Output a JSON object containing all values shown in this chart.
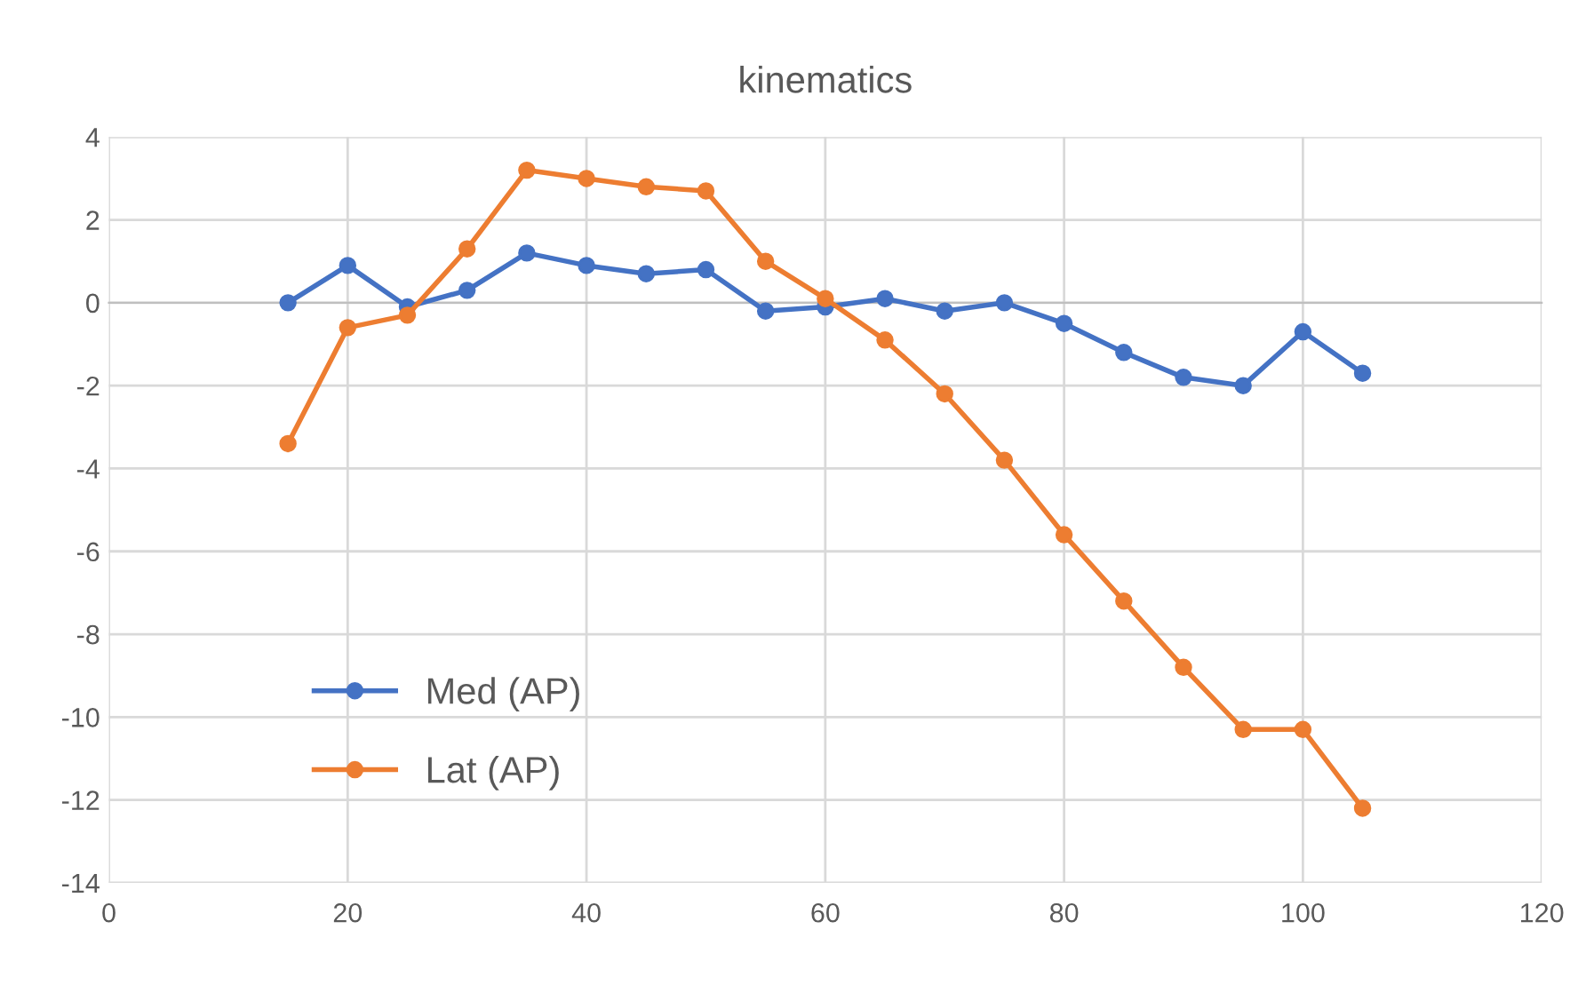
{
  "chart_data": {
    "type": "line",
    "title": "kinematics",
    "x": [
      15,
      20,
      25,
      30,
      35,
      40,
      45,
      50,
      55,
      60,
      65,
      70,
      75,
      80,
      85,
      90,
      95,
      100,
      105
    ],
    "series": [
      {
        "name": "Med (AP)",
        "color": "#4472c4",
        "values": [
          0,
          0.9,
          -0.1,
          0.3,
          1.2,
          0.9,
          0.7,
          0.8,
          -0.2,
          -0.1,
          0.1,
          -0.2,
          0,
          -0.5,
          -1.2,
          -1.8,
          -2.0,
          -0.7,
          -1.7
        ]
      },
      {
        "name": "Lat (AP)",
        "color": "#ed7d31",
        "values": [
          -3.4,
          -0.6,
          -0.3,
          1.3,
          3.2,
          3.0,
          2.8,
          2.7,
          1.0,
          0.1,
          -0.9,
          -2.2,
          -3.8,
          -5.6,
          -7.2,
          -8.8,
          -10.3,
          -10.3,
          -12.2
        ]
      }
    ],
    "xlim": [
      0,
      120
    ],
    "xticks": [
      0,
      20,
      40,
      60,
      80,
      100,
      120
    ],
    "ylim": [
      -14,
      4
    ],
    "yticks": [
      -14,
      -12,
      -10,
      -8,
      -6,
      -4,
      -2,
      0,
      2,
      4
    ],
    "grid": true,
    "legend": "bottom left",
    "marker": "circle",
    "line_style": "solid"
  }
}
